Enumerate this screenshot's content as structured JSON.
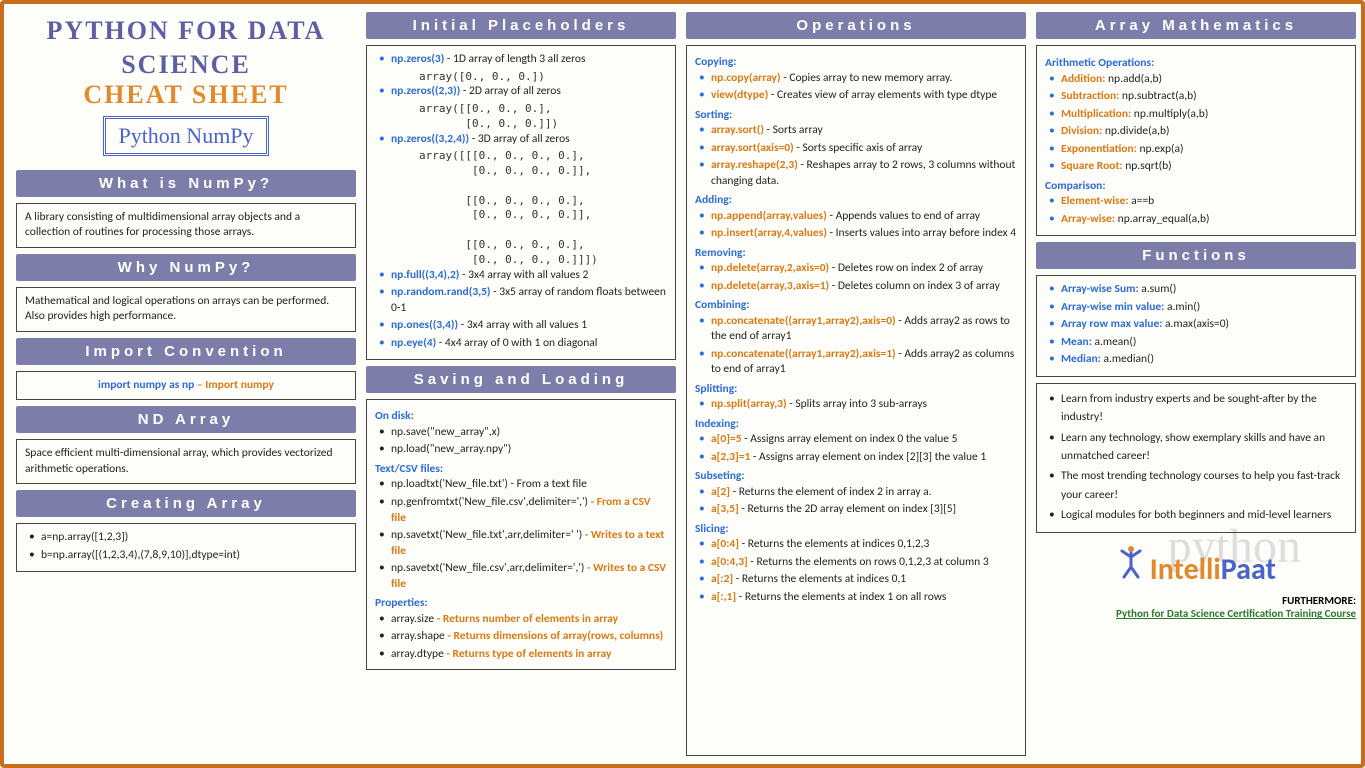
{
  "header": {
    "title_line1": "PYTHON FOR DATA",
    "title_line2": "SCIENCE",
    "cheat": "CHEAT SHEET",
    "subject": "Python NumPy",
    "colors": {
      "accent_purple": "#5e5fa2",
      "accent_orange": "#e18a2b",
      "link_blue": "#4a63c8",
      "border_orange": "#c56f1c"
    }
  },
  "col1": {
    "what": {
      "title": "What is NumPy?",
      "text": "A library consisting of multidimensional array objects and a collection of routines for processing those arrays."
    },
    "why": {
      "title": "Why NumPy?",
      "text": "Mathematical and logical operations on arrays can be performed. Also provides high performance."
    },
    "import": {
      "title": "Import Convention",
      "code": "import numpy as np",
      "suffix": " – Import numpy"
    },
    "nd": {
      "title": "ND Array",
      "text": "Space efficient multi-dimensional array, which provides vectorized arithmetic operations."
    },
    "create": {
      "title": "Creating Array",
      "items": [
        "a=np.array([1,2,3])",
        "b=np.array([(1,2,3,4),(7,8,9,10)],dtype=int)"
      ]
    }
  },
  "col2": {
    "placeholders": {
      "title": "Initial Placeholders",
      "items": [
        {
          "code": "np.zeros(3)",
          "desc": " - 1D array of length 3 all zeros",
          "out": "array([0., 0., 0.])"
        },
        {
          "code": "np.zeros((2,3))",
          "desc": " - 2D array of all zeros",
          "out": "array([[0., 0., 0.],\n       [0., 0., 0.]])"
        },
        {
          "code": "np.zeros((3,2,4))",
          "desc": " - 3D array of all zeros",
          "out": "array([[[0., 0., 0., 0.],\n        [0., 0., 0., 0.]],\n\n       [[0., 0., 0., 0.],\n        [0., 0., 0., 0.]],\n\n       [[0., 0., 0., 0.],\n        [0., 0., 0., 0.]]])"
        },
        {
          "code": "np.full((3,4),2)",
          "desc": " - 3x4 array with all values 2"
        },
        {
          "code": "np.random.rand(3,5)",
          "desc": " - 3x5 array of random floats between 0-1"
        },
        {
          "code": "np.ones((3,4))",
          "desc": " - 3x4 array with all values 1"
        },
        {
          "code": "np.eye(4)",
          "desc": " - 4x4 array of 0 with 1 on diagonal"
        }
      ]
    },
    "saving": {
      "title": "Saving and Loading",
      "groups": [
        {
          "head": "On disk:",
          "items": [
            {
              "t": "np.save(\"new_array\",x)"
            },
            {
              "t": "np.load(\"new_array.npy\")"
            }
          ]
        },
        {
          "head": "Text/CSV files:",
          "items": [
            {
              "t": "np.loadtxt('New_file.txt') - From a text file"
            },
            {
              "t": "np.genfromtxt('New_file.csv',delimiter=',')",
              "o": " - From a CSV file"
            },
            {
              "t": "np.savetxt('New_file.txt',arr,delimiter=' ')",
              "o": " - Writes to a text file"
            },
            {
              "t": "np.savetxt('New_file.csv',arr,delimiter=',')",
              "o": " - Writes to a CSV file"
            }
          ]
        },
        {
          "head": "Properties:",
          "items": [
            {
              "t": "array.size",
              "o": " - Returns number of elements in array"
            },
            {
              "t": "array.shape",
              "o": " - Returns dimensions of array(rows, columns)"
            },
            {
              "t": "array.dtype",
              "o": " - Returns type of elements in array"
            }
          ]
        }
      ]
    }
  },
  "col3": {
    "ops": {
      "title": "Operations",
      "groups": [
        {
          "head": "Copying:",
          "items": [
            {
              "c": "np.copy(array)",
              "d": " - Copies array to new memory array."
            },
            {
              "c": "view(dtype)",
              "d": " - Creates view of array elements with type dtype"
            }
          ]
        },
        {
          "head": "Sorting:",
          "items": [
            {
              "c": "array.sort()",
              "d": " - Sorts array"
            },
            {
              "c": "array.sort(axis=0)",
              "d": " - Sorts specific axis of array"
            },
            {
              "c": "array.reshape(2,3)",
              "d": " - Reshapes array to 2 rows, 3 columns without changing data."
            }
          ]
        },
        {
          "head": "Adding:",
          "items": [
            {
              "c": "np.append(array,values)",
              "d": " - Appends values to end of array"
            },
            {
              "c": "np.insert(array,4,values)",
              "d": " - Inserts values into array before index 4"
            }
          ]
        },
        {
          "head": "Removing:",
          "items": [
            {
              "c": "np.delete(array,2,axis=0)",
              "d": " - Deletes row on index 2 of array"
            },
            {
              "c": "np.delete(array,3,axis=1)",
              "d": " - Deletes column on index 3 of array"
            }
          ]
        },
        {
          "head": "Combining:",
          "items": [
            {
              "c": "np.concatenate((array1,array2),axis=0)",
              "d": " - Adds array2 as rows to the end of array1"
            },
            {
              "c": "np.concatenate((array1,array2),axis=1)",
              "d": " - Adds array2 as columns to end of array1"
            }
          ]
        },
        {
          "head": "Splitting:",
          "items": [
            {
              "c": "np.split(array,3)",
              "d": " - Splits array into 3 sub-arrays"
            }
          ]
        },
        {
          "head": "Indexing:",
          "items": [
            {
              "c": "a[0]=5",
              "d": " - Assigns array element on index 0 the value 5"
            },
            {
              "c": "a[2,3]=1",
              "d": " - Assigns array element on index [2][3] the value 1"
            }
          ]
        },
        {
          "head": "Subseting:",
          "items": [
            {
              "c": "a[2]",
              "d": " - Returns the element of index 2 in array a."
            },
            {
              "c": "a[3,5]",
              "d": " - Returns the 2D array element on index [3][5]"
            }
          ]
        },
        {
          "head": "Slicing:",
          "items": [
            {
              "c": "a[0:4]",
              "d": " - Returns the elements at indices 0,1,2,3"
            },
            {
              "c": "a[0:4,3]",
              "d": " - Returns the elements on rows 0,1,2,3 at column 3"
            },
            {
              "c": "a[:2]",
              "d": " - Returns the elements at indices 0,1"
            },
            {
              "c": "a[:,1]",
              "d": " - Returns the elements at index 1 on all rows"
            }
          ]
        }
      ]
    }
  },
  "col4": {
    "math": {
      "title": "Array Mathematics",
      "groups": [
        {
          "head": "Arithmetic Operations:",
          "items": [
            {
              "c": "Addition:",
              "d": " np.add(a,b)"
            },
            {
              "c": "Subtraction:",
              "d": " np.subtract(a,b)"
            },
            {
              "c": "Multiplication:",
              "d": "  np.multiply(a,b)"
            },
            {
              "c": "Division:",
              "d": " np.divide(a,b)"
            },
            {
              "c": "Exponentiation:",
              "d": " np.exp(a)"
            },
            {
              "c": "Square Root:",
              "d": " np.sqrt(b)"
            }
          ]
        },
        {
          "head": "Comparison:",
          "items": [
            {
              "c": "Element-wise:",
              "d": " a==b"
            },
            {
              "c": "Array-wise:",
              "d": " np.array_equal(a,b)"
            }
          ]
        }
      ]
    },
    "funcs": {
      "title": "Functions",
      "items": [
        {
          "c": "Array-wise Sum:",
          "d": " a.sum()"
        },
        {
          "c": "Array-wise min value:",
          "d": " a.min()"
        },
        {
          "c": "Array row max value:",
          "d": "  a.max(axis=0)"
        },
        {
          "c": "Mean:",
          "d": " a.mean()"
        },
        {
          "c": "Median:",
          "d": " a.median()"
        }
      ]
    },
    "promo": [
      "Learn from industry experts and be sought-after by the industry!",
      "Learn any technology, show exemplary skills and have an unmatched career!",
      "The most trending technology courses to help you fast-track your career!",
      "Logical modules for both beginners and mid-level learners"
    ],
    "logo": {
      "part1": "Intelli",
      "part2": "Paat"
    },
    "further": {
      "label": "FURTHERMORE:",
      "link": "Python for Data Science Certification Training Course"
    }
  }
}
